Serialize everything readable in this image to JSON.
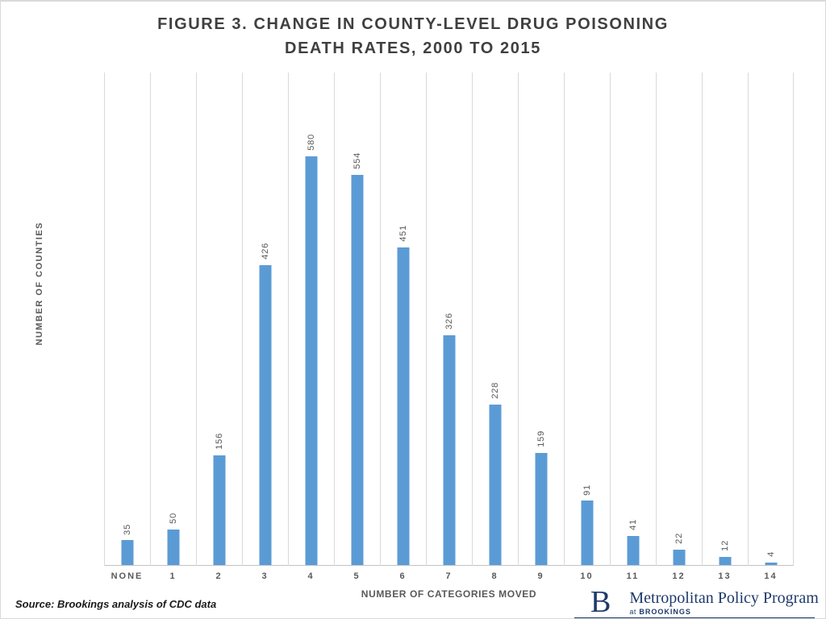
{
  "chart_data": {
    "type": "bar",
    "title_line1": "FIGURE 3.  CHANGE IN COUNTY-LEVEL DRUG POISONING",
    "title_line2": "DEATH RATES, 2000 TO 2015",
    "categories": [
      "NONE",
      "1",
      "2",
      "3",
      "4",
      "5",
      "6",
      "7",
      "8",
      "9",
      "10",
      "11",
      "12",
      "13",
      "14"
    ],
    "values": [
      35,
      50,
      156,
      426,
      580,
      554,
      451,
      326,
      228,
      159,
      91,
      41,
      22,
      12,
      4
    ],
    "xlabel": "NUMBER OF CATEGORIES MOVED",
    "ylabel": "NUMBER OF COUNTIES",
    "ylim": [
      0,
      700
    ],
    "grid": true,
    "gridline_count": 16,
    "legend": "none",
    "data_label_style": "rotated-90-above-bar",
    "bar_color": "#5b9bd5",
    "gridline_color": "#d9d9d9",
    "text_color": "#595959",
    "title_color": "#404040"
  },
  "footer": {
    "source": "Source:  Brookings analysis of CDC data",
    "logo": {
      "letter": "B",
      "program": "Metropolitan Policy Program",
      "at": "at",
      "org": "BROOKINGS",
      "navy": "#1e3a6b"
    }
  }
}
